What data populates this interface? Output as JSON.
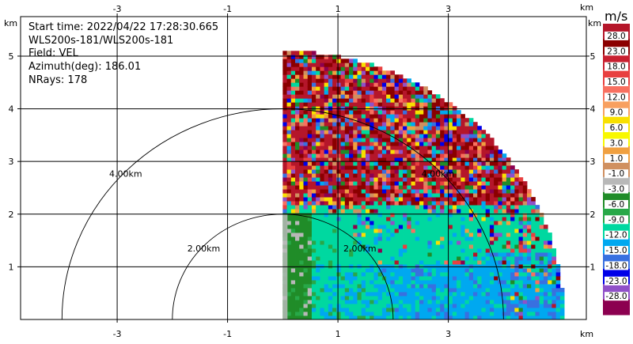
{
  "chart_data": {
    "type": "heatmap",
    "info": [
      "Start time: 2022/04/22 17:28:30.665",
      "WLS200s-181/WLS200s-181",
      "Field: VEL",
      "Azimuth(deg): 186.01",
      "NRays: 178"
    ],
    "axis_unit": "km",
    "xlim": [
      -4.75,
      5.5
    ],
    "ylim": [
      0,
      5.75
    ],
    "x_ticks": [
      -3,
      -1,
      1,
      3
    ],
    "y_ticks": [
      1,
      2,
      3,
      4,
      5
    ],
    "range_rings": [
      {
        "radius": 2,
        "label": "2.00km"
      },
      {
        "radius": 4,
        "label": "4.00km"
      }
    ],
    "sector": {
      "x_min": 0,
      "radius_max": 5.1
    },
    "colorbar": {
      "unit": "m/s",
      "labels": [
        "28.0",
        "23.0",
        "18.0",
        "15.0",
        "12.0",
        "9.0",
        "6.0",
        "3.0",
        "1.0",
        "-1.0",
        "-3.0",
        "-6.0",
        "-9.0",
        "-12.0",
        "-15.0",
        "-18.0",
        "-23.0",
        "-28.0"
      ],
      "colors": [
        "#b5162a",
        "#8b0000",
        "#c82030",
        "#e84040",
        "#f87060",
        "#f8a060",
        "#f8e000",
        "#f8f800",
        "#f0a040",
        "#d09060",
        "#b8b8b8",
        "#208c28",
        "#28a848",
        "#00d8a0",
        "#00a8f0",
        "#3870e0",
        "#0000e8",
        "#9050c8",
        "#8c0050"
      ]
    }
  }
}
